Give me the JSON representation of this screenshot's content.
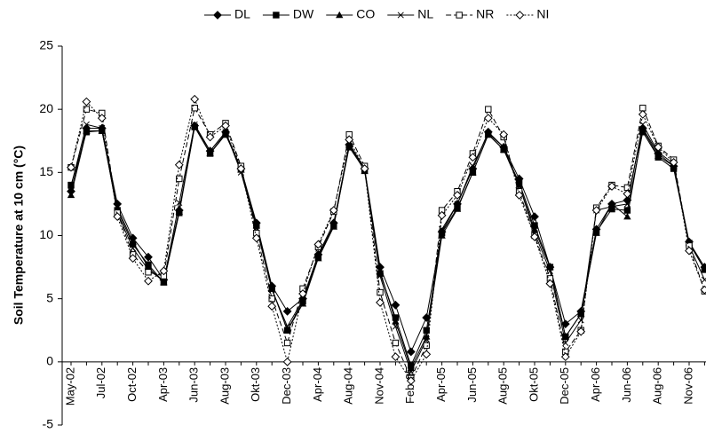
{
  "chart_data": {
    "type": "line",
    "y_label": "Soil Temperature at 10 cm (°C)",
    "categories": [
      "May-02",
      null,
      "Jul-02",
      null,
      "Oct-02",
      null,
      "Apr-03",
      null,
      "Jun-03",
      null,
      "Aug-03",
      null,
      "Okt-03",
      null,
      "Dec-03",
      null,
      "Apr-04",
      null,
      "Aug-04",
      null,
      "Nov-04",
      null,
      "Feb-05",
      null,
      "Apr-05",
      null,
      "Jun-05",
      null,
      "Aug-05",
      null,
      "Okt-05",
      null,
      "Dec-05",
      null,
      "Apr-06",
      null,
      "Jun-06",
      null,
      "Aug-06",
      null,
      "Nov-06",
      null
    ],
    "ylim": [
      -5,
      25
    ],
    "yticks": [
      -5,
      0,
      5,
      10,
      15,
      20,
      25
    ],
    "legend": "top",
    "series": [
      {
        "name": "DL",
        "color": "#000000",
        "dash": "solid",
        "marker": "diamond",
        "values": [
          13.5,
          18.5,
          18.5,
          12.5,
          9.8,
          8.3,
          6.5,
          12,
          18.7,
          16.7,
          18.2,
          15.3,
          11,
          6,
          4,
          5,
          8.5,
          11,
          17.2,
          15.3,
          7.5,
          4.5,
          0.8,
          3.5,
          10.3,
          12.5,
          15.3,
          18.2,
          17,
          14.5,
          11.5,
          7.5,
          3,
          4,
          10.5,
          12.5,
          12.8,
          18.5,
          16.5,
          15.5,
          9.5,
          7.5
        ]
      },
      {
        "name": "DW",
        "color": "#000000",
        "dash": "solid",
        "marker": "square",
        "values": [
          14,
          18.2,
          18.3,
          12,
          9.3,
          7.7,
          6.3,
          11.8,
          18.6,
          16.5,
          18,
          15.3,
          10.8,
          5.8,
          2.5,
          4.8,
          8.3,
          10.8,
          17,
          15.2,
          7,
          3.5,
          -0.3,
          2.5,
          10.2,
          12.2,
          15,
          18,
          16.8,
          14.2,
          10.8,
          7.5,
          2,
          3.8,
          10.3,
          12.1,
          12,
          18.2,
          16.2,
          15.3,
          9.4,
          7.3
        ]
      },
      {
        "name": "CO",
        "color": "#000000",
        "dash": "solid",
        "marker": "triangle",
        "values": [
          13.2,
          18.3,
          18.3,
          12.2,
          9.5,
          7.5,
          6.3,
          11.9,
          18.7,
          16.5,
          18.1,
          15.2,
          10.8,
          5.8,
          2.5,
          4.6,
          8.2,
          10.7,
          17.2,
          15.1,
          7.2,
          3.2,
          -0.5,
          2,
          10,
          12.1,
          15,
          18,
          16.8,
          14,
          10.5,
          7.5,
          2,
          3.8,
          10.2,
          12.5,
          11.5,
          18.4,
          16.3,
          15.5,
          9.4,
          7.5
        ]
      },
      {
        "name": "NL",
        "color": "#000000",
        "dash": "solid",
        "marker": "x",
        "values": [
          13.9,
          18.8,
          18.5,
          11.8,
          9,
          7.3,
          6.4,
          12.6,
          18.8,
          16.7,
          18.2,
          15,
          10.6,
          5.7,
          2.8,
          4.9,
          8.4,
          10.8,
          17.3,
          15.3,
          6.8,
          2.8,
          -0.8,
          1.8,
          10.5,
          12.5,
          15.5,
          18.1,
          17,
          14,
          10.2,
          7.2,
          1.5,
          3.3,
          12,
          12.3,
          12.5,
          18.8,
          16.6,
          15.7,
          9.2,
          6.5
        ]
      },
      {
        "name": "NR",
        "color": "#000000",
        "dash": "dashed",
        "marker": "open-square",
        "values": [
          15.4,
          20,
          19.7,
          11.8,
          8.5,
          7.1,
          6.8,
          14.5,
          20.1,
          18,
          18.9,
          15.5,
          10.2,
          5,
          1.5,
          5.8,
          9.1,
          11.9,
          18,
          15.5,
          5.5,
          1.5,
          -1.3,
          1.3,
          12,
          13.5,
          16.5,
          20,
          17.8,
          13.5,
          10,
          6.6,
          0.8,
          2.5,
          12.2,
          14,
          13.8,
          20.1,
          17.1,
          16,
          9.2,
          5.6
        ]
      },
      {
        "name": "NI",
        "color": "#000000",
        "dash": "dotted",
        "marker": "open-diamond",
        "values": [
          15.4,
          20.6,
          19.3,
          11.5,
          8.2,
          6.4,
          7.2,
          15.6,
          20.8,
          17.8,
          18.7,
          15.3,
          9.8,
          4.4,
          0,
          5.4,
          9.3,
          12,
          17.6,
          15.3,
          4.7,
          0.4,
          -1.5,
          0.6,
          11.6,
          13.2,
          16.2,
          19.3,
          18,
          13.2,
          9.9,
          6.2,
          0.4,
          2.4,
          12,
          13.9,
          13.3,
          19.6,
          17,
          15.8,
          8.8,
          5.7
        ]
      }
    ]
  }
}
